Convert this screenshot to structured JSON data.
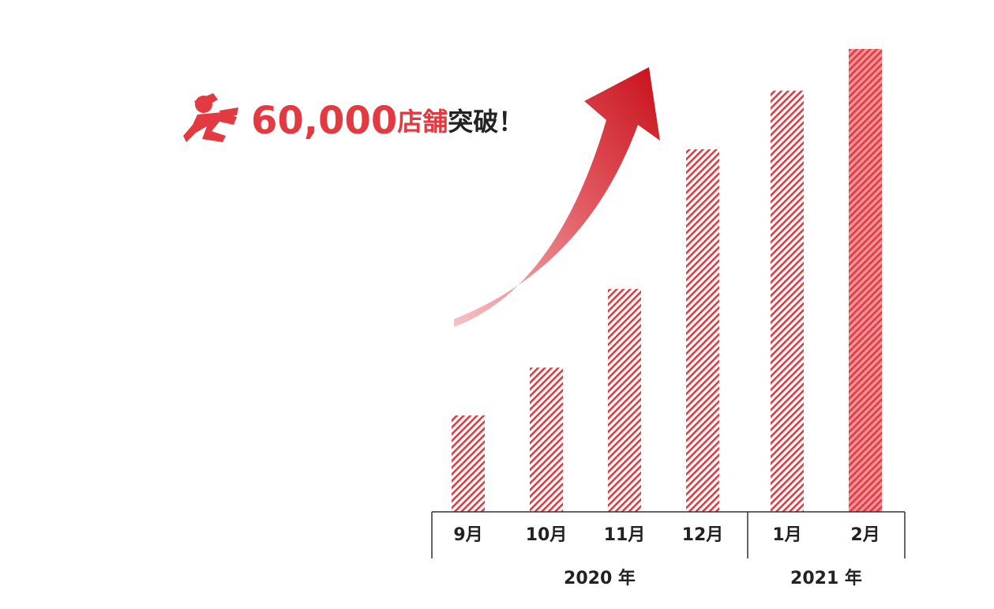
{
  "chart_data": {
    "type": "bar",
    "headline": {
      "number": "60,000",
      "unit": "店舗",
      "suffix": "突破！"
    },
    "categories": [
      "9月",
      "10月",
      "11月",
      "12月",
      "1月",
      "2月"
    ],
    "groups": [
      {
        "label": "2020 年",
        "span": 4
      },
      {
        "label": "2021 年",
        "span": 2
      }
    ],
    "values": [
      12500,
      18700,
      28900,
      47000,
      54600,
      60000
    ],
    "ylim": [
      0,
      60000
    ],
    "color": "#e23a40",
    "highlight_last": true
  }
}
